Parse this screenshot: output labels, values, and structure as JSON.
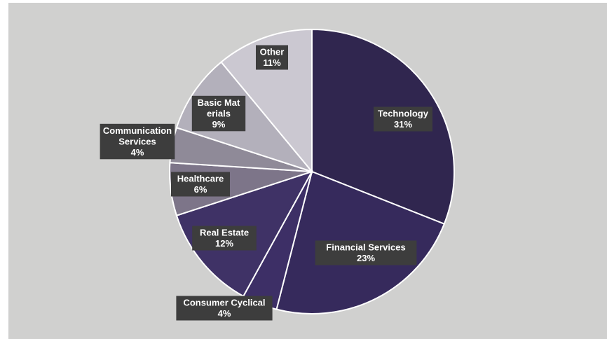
{
  "chart_data": {
    "type": "pie",
    "title": "",
    "categories": [
      "Technology",
      "Financial Services",
      "Consumer Cyclical",
      "Real Estate",
      "Healthcare",
      "Communication Services",
      "Basic Materials",
      "Other"
    ],
    "values": [
      31,
      23,
      4,
      12,
      6,
      4,
      9,
      11
    ],
    "value_labels": [
      "31%",
      "23%",
      "4%",
      "12%",
      "6%",
      "4%",
      "9%",
      "11%"
    ],
    "colors": [
      "#30264f",
      "#362a5c",
      "#3d2f66",
      "#3f3266",
      "#7d7589",
      "#8f8a98",
      "#b3b0bb",
      "#cbc8d1"
    ],
    "label_color": "#ffffff",
    "label_box_color": "#3d3d3d",
    "slice_border_color": "#ffffff",
    "background": "#d0d0cf",
    "legend": "none"
  }
}
